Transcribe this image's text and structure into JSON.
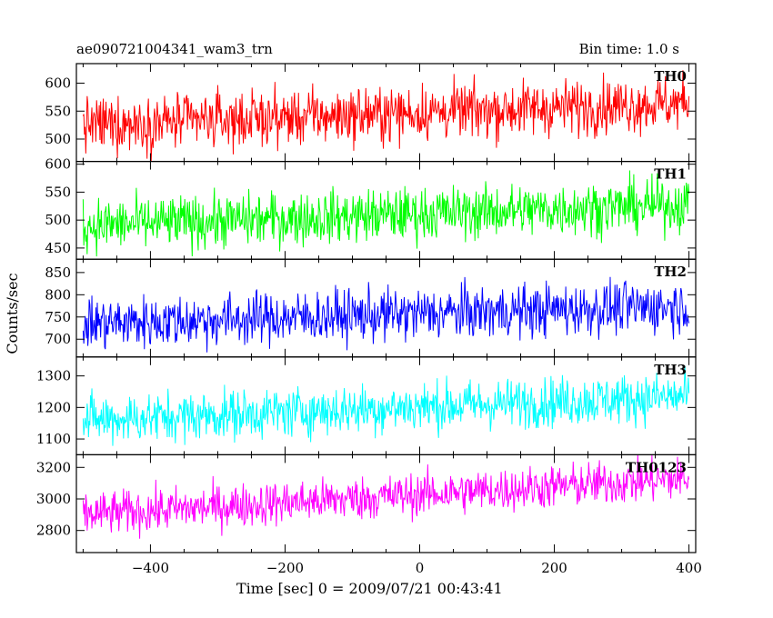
{
  "header": {
    "title": "ae090721004341_wam3_trn",
    "bin_time": "Bin time: 1.0 s"
  },
  "chart_data": {
    "type": "line",
    "xlabel": "Time [sec] 0 = 2009/07/21 00:43:41",
    "ylabel": "Counts/sec",
    "xlim": [
      -510,
      410
    ],
    "x_ticks": [
      -400,
      -200,
      0,
      200,
      400
    ],
    "x_tick_labels": [
      "−400",
      "−200",
      "0",
      "200",
      "400"
    ],
    "bin_seconds": 1.0,
    "x_range_data": [
      -500,
      400
    ],
    "grid": false,
    "panels": [
      {
        "name": "TH0",
        "color": "#ff0000",
        "ylim": [
          460,
          635
        ],
        "y_ticks": [
          500,
          550,
          600
        ],
        "trend_start": 525,
        "trend_end": 565,
        "noise": 25
      },
      {
        "name": "TH1",
        "color": "#00ff00",
        "ylim": [
          430,
          605
        ],
        "y_ticks": [
          450,
          500,
          550,
          600
        ],
        "trend_start": 490,
        "trend_end": 528,
        "noise": 24
      },
      {
        "name": "TH2",
        "color": "#0000ff",
        "ylim": [
          660,
          880
        ],
        "y_ticks": [
          700,
          750,
          800,
          850
        ],
        "trend_start": 735,
        "trend_end": 775,
        "noise": 30
      },
      {
        "name": "TH3",
        "color": "#00ffff",
        "ylim": [
          1050,
          1360
        ],
        "y_ticks": [
          1100,
          1200,
          1300
        ],
        "trend_start": 1160,
        "trend_end": 1235,
        "noise": 40
      },
      {
        "name": "TH0123",
        "color": "#ff00ff",
        "ylim": [
          2660,
          3280
        ],
        "y_ticks": [
          2800,
          3000,
          3200
        ],
        "trend_start": 2900,
        "trend_end": 3130,
        "noise": 70
      }
    ]
  }
}
